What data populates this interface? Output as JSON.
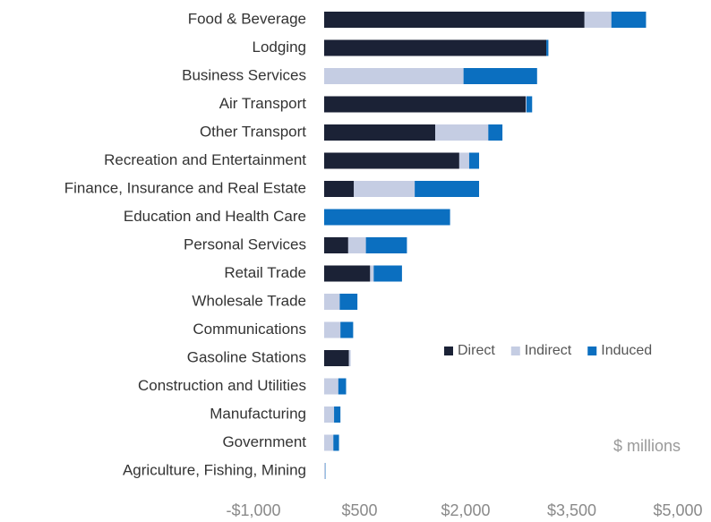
{
  "chart_data": {
    "type": "stacked-barh",
    "categories": [
      "Food & Beverage",
      "Lodging",
      "Business Services",
      "Air Transport",
      "Other Transport",
      "Recreation and Entertainment",
      "Finance, Insurance and Real Estate",
      "Education and Health Care",
      "Personal Services",
      "Retail Trade",
      "Wholesale Trade",
      "Communications",
      "Gasoline Stations",
      "Construction and Utilities",
      "Manufacturing",
      "Government",
      "Agriculture, Fishing, Mining"
    ],
    "series": [
      {
        "name": "Direct",
        "color": "#1b2236",
        "values": [
          3680,
          3140,
          0,
          2850,
          1570,
          1910,
          420,
          0,
          340,
          650,
          0,
          0,
          350,
          0,
          0,
          0,
          0
        ]
      },
      {
        "name": "Indirect",
        "color": "#c5cde3",
        "values": [
          380,
          0,
          1970,
          10,
          750,
          140,
          860,
          0,
          250,
          50,
          220,
          230,
          25,
          200,
          140,
          130,
          15
        ]
      },
      {
        "name": "Induced",
        "color": "#0b6fc0",
        "values": [
          490,
          30,
          1040,
          80,
          200,
          140,
          910,
          1780,
          580,
          400,
          250,
          180,
          0,
          110,
          90,
          80,
          5
        ]
      }
    ],
    "xlim": [
      -1000,
      5000
    ],
    "xticks": [
      {
        "value": -1000,
        "label": "-$1,000"
      },
      {
        "value": 500,
        "label": "$500"
      },
      {
        "value": 2000,
        "label": "$2,000"
      },
      {
        "value": 3500,
        "label": "$3,500"
      },
      {
        "value": 5000,
        "label": "$5,000"
      }
    ],
    "annotation": "$ millions",
    "legend": "right",
    "grid": false
  }
}
